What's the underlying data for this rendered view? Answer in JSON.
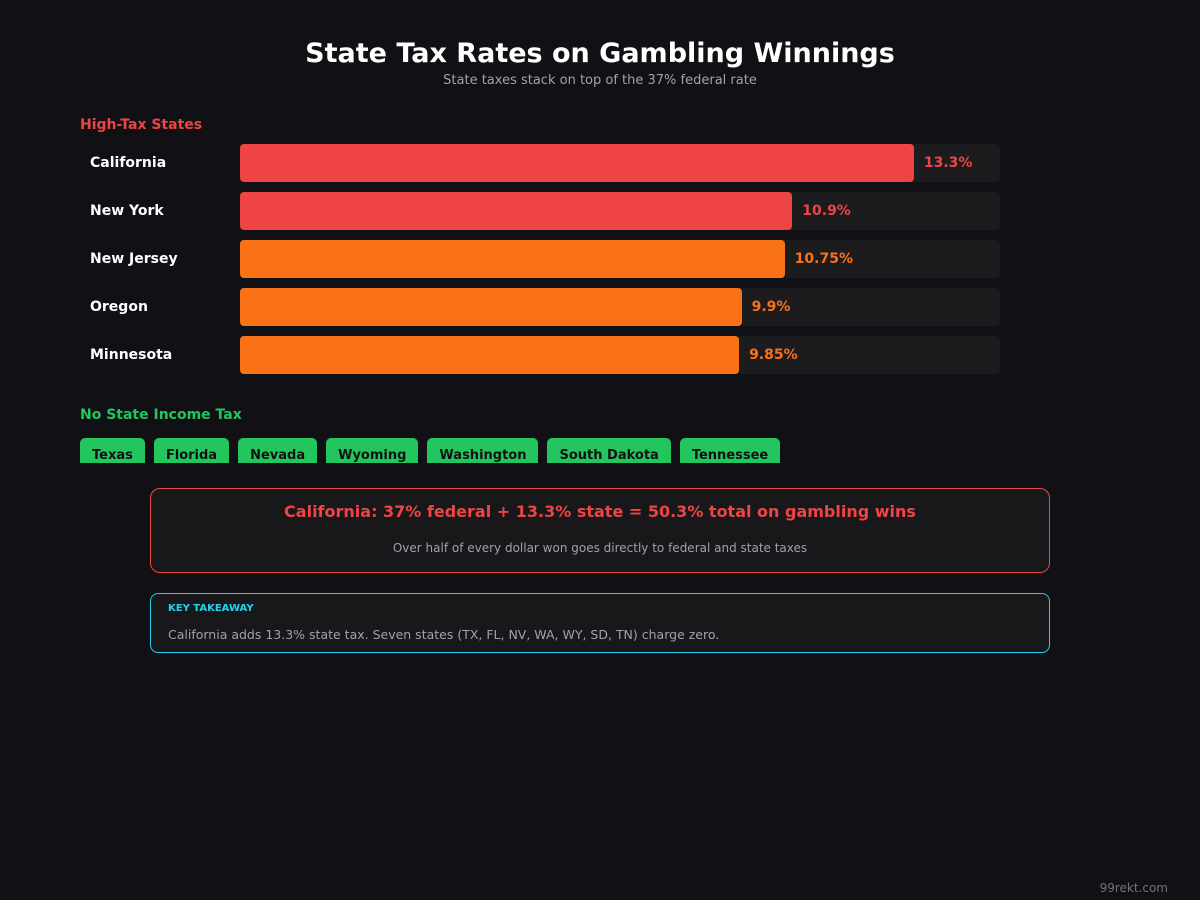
{
  "chart_data": {
    "type": "hbar",
    "title": "State Tax Rates on Gambling Winnings",
    "subtitle": "State taxes stack on top of the 37% federal rate",
    "section_title": "High-Tax States",
    "categories": [
      "California",
      "New York",
      "New Jersey",
      "Oregon",
      "Minnesota"
    ],
    "values": [
      13.3,
      10.9,
      10.75,
      9.9,
      9.85
    ],
    "value_labels": [
      "13.3%",
      "10.9%",
      "10.75%",
      "9.9%",
      "9.85%"
    ],
    "colors": [
      "#ef4444",
      "#ef4444",
      "#f97316",
      "#f97316",
      "#f97316"
    ],
    "xlim": [
      0,
      15
    ]
  },
  "no_tax": {
    "title": "No State Income Tax",
    "states": [
      "Texas",
      "Florida",
      "Nevada",
      "Wyoming",
      "Washington",
      "South Dakota",
      "Tennessee"
    ]
  },
  "callout": {
    "headline": "California: 37% federal + 13.3% state = 50.3% total on gambling wins",
    "subtext": "Over half of every dollar won goes directly to federal and state taxes"
  },
  "takeaway": {
    "label": "KEY TAKEAWAY",
    "text": "California adds 13.3% state tax. Seven states (TX, FL, NV, WA, WY, SD, TN) charge zero."
  },
  "footer": "99rekt.com"
}
